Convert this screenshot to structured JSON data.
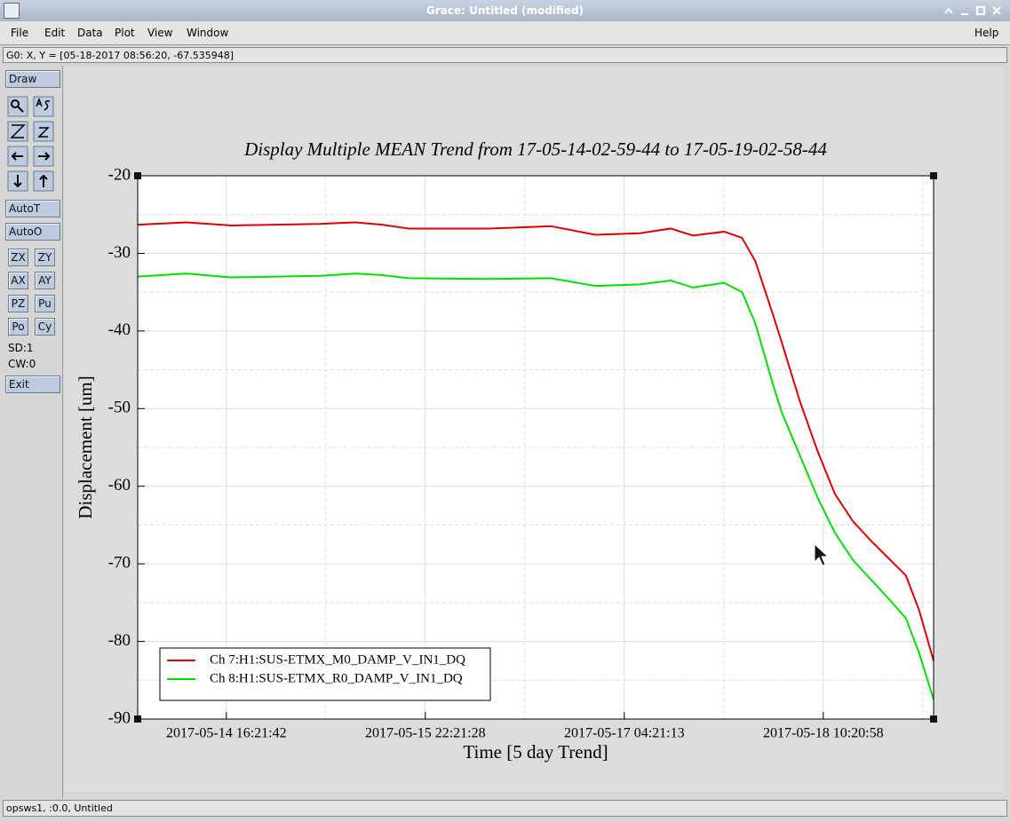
{
  "window": {
    "title": "Grace: Untitled (modified)"
  },
  "menu": {
    "items": [
      "File",
      "Edit",
      "Data",
      "Plot",
      "View",
      "Window"
    ],
    "help": "Help"
  },
  "status_line": "G0: X, Y = [05-18-2017 08:56:20, -67.535948]",
  "toolbar": {
    "draw": "Draw",
    "auto": [
      "AutoT",
      "AutoO"
    ],
    "grid_buttons": [
      "ZX",
      "ZY",
      "AX",
      "AY",
      "PZ",
      "Pu",
      "Po",
      "Cy"
    ],
    "sd": "SD:1",
    "cw": "CW:0",
    "exit": "Exit"
  },
  "footer": "opsws1, :0.0, Untitled",
  "chart_data": {
    "type": "line",
    "title": "Display Multiple MEAN Trend from 17-05-14-02-59-44 to 17-05-19-02-58-44",
    "xlabel": "Time [5 day Trend]",
    "ylabel": "Displacement [um]",
    "x": [
      "2017-05-14 02:59:44",
      "2017-05-14 10:22:00",
      "2017-05-14 17:04:00",
      "2017-05-15 06:27:00",
      "2017-05-15 11:49:00",
      "2017-05-15 15:50:00",
      "2017-05-15 19:51:00",
      "2017-05-16 07:54:00",
      "2017-05-16 17:18:00",
      "2017-05-17 00:00:00",
      "2017-05-17 06:42:00",
      "2017-05-17 11:20:00",
      "2017-05-17 14:42:00",
      "2017-05-17 19:24:00",
      "2017-05-17 22:06:00",
      "2017-05-18 00:06:00",
      "2017-05-18 02:48:00",
      "2017-05-18 04:06:00",
      "2017-05-18 06:48:00",
      "2017-05-18 09:30:00",
      "2017-05-18 12:06:00",
      "2017-05-18 14:48:00",
      "2017-05-18 17:30:00",
      "2017-05-18 20:12:00",
      "2017-05-18 22:48:00",
      "2017-05-19 00:48:00",
      "2017-05-19 02:58:44"
    ],
    "series": [
      {
        "name": "Ch 7:H1:SUS-ETMX_M0_DAMP_V_IN1_DQ",
        "color": "#e00000",
        "values": [
          -26.3,
          -26,
          -26.4,
          -26.2,
          -26,
          -26.3,
          -26.8,
          -26.8,
          -26.5,
          -27.6,
          -27.4,
          -26.8,
          -27.7,
          -27.2,
          -28,
          -31,
          -38,
          -41.5,
          -49,
          -55.5,
          -61,
          -64.5,
          -67,
          -69.3,
          -71.5,
          -76,
          -82.5
        ]
      },
      {
        "name": "Ch 8:H1:SUS-ETMX_R0_DAMP_V_IN1_DQ",
        "color": "#00e000",
        "values": [
          -33,
          -32.6,
          -33.1,
          -32.9,
          -32.6,
          -32.8,
          -33.2,
          -33.3,
          -33.2,
          -34.2,
          -34,
          -33.5,
          -34.4,
          -33.8,
          -35,
          -39,
          -47,
          -50.5,
          -56,
          -61.5,
          -66,
          -69.5,
          -72,
          -74.5,
          -77,
          -81.5,
          -87.5
        ]
      }
    ],
    "xlim": [
      "2017-05-14 02:59:44",
      "2017-05-19 02:58:44"
    ],
    "xticks": [
      "2017-05-14 16:21:42",
      "2017-05-15 22:21:28",
      "2017-05-17 04:21:13",
      "2017-05-18 10:20:58"
    ],
    "ylim": [
      -90,
      -20
    ],
    "yticks": [
      -90,
      -80,
      -70,
      -60,
      -50,
      -40,
      -30,
      -20
    ],
    "grid": true,
    "legend": "lower left"
  }
}
